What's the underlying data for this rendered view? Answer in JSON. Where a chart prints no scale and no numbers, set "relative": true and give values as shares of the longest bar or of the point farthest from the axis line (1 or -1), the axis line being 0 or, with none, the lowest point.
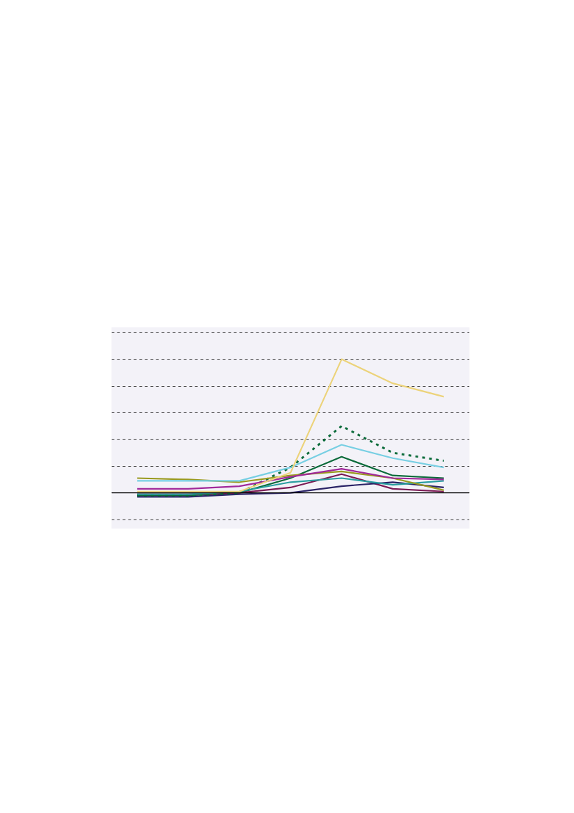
{
  "chart_data": {
    "type": "line",
    "relative": true,
    "categories": [
      null,
      null,
      null,
      null,
      null,
      null,
      null
    ],
    "grid": "y",
    "tick_labels": false,
    "line_style": "solid",
    "marker": "none",
    "series": [
      {
        "color": "#0b6b3a",
        "values": [
          -0.02,
          -0.02,
          0,
          0.11,
          0.27,
          0.13,
          0.11
        ]
      },
      {
        "color": "#7a1a54",
        "values": [
          -0.01,
          -0.01,
          0,
          0.04,
          0.14,
          0.03,
          0.01
        ]
      },
      {
        "color": "#2a2366",
        "values": [
          -0.03,
          -0.03,
          -0.01,
          0,
          0.05,
          0.08,
          0.04
        ]
      },
      {
        "color": "#0b6b3a",
        "line_style": "dotted",
        "values": [
          -0.02,
          -0.02,
          0,
          0.19,
          0.5,
          0.3,
          0.24
        ]
      },
      {
        "color": "#2a9ea0",
        "values": [
          -0.01,
          -0.01,
          0.01,
          0.08,
          0.11,
          0.06,
          0.09
        ]
      },
      {
        "color": "#999a1f",
        "values": [
          0.11,
          0.1,
          0.08,
          0.13,
          0.16,
          0.11,
          0.02
        ]
      },
      {
        "color": "#a0289a",
        "values": [
          0.03,
          0.03,
          0.05,
          0.12,
          0.18,
          0.11,
          0.1
        ]
      },
      {
        "color": "#77cfe3",
        "values": [
          0.09,
          0.09,
          0.09,
          0.19,
          0.36,
          0.26,
          0.19
        ]
      },
      {
        "color": "#ecd37a",
        "values": [
          0.01,
          0.01,
          0.01,
          0.15,
          1,
          0.82,
          0.72
        ]
      }
    ]
  }
}
